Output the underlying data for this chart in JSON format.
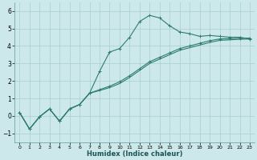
{
  "xlabel": "Humidex (Indice chaleur)",
  "x_ticks": [
    0,
    1,
    2,
    3,
    4,
    5,
    6,
    7,
    8,
    9,
    10,
    11,
    12,
    13,
    14,
    15,
    16,
    17,
    18,
    19,
    20,
    21,
    22,
    23
  ],
  "ylim": [
    -1.5,
    6.5
  ],
  "xlim": [
    -0.5,
    23.5
  ],
  "yticks": [
    -1,
    0,
    1,
    2,
    3,
    4,
    5,
    6
  ],
  "bg_color": "#cce8eb",
  "grid_color": "#a8cdd1",
  "line_color": "#2e7d6e",
  "line1_x": [
    0,
    1,
    2,
    3,
    4,
    5,
    6,
    7,
    8,
    9,
    10,
    11,
    12,
    13,
    14,
    15,
    16,
    17,
    18,
    19,
    20,
    21,
    22,
    23
  ],
  "line1_y": [
    0.2,
    -0.75,
    -0.05,
    0.4,
    -0.3,
    0.4,
    0.65,
    1.3,
    2.55,
    3.65,
    3.85,
    4.5,
    5.4,
    5.75,
    5.6,
    5.15,
    4.8,
    4.7,
    4.55,
    4.6,
    4.55,
    4.5,
    4.5,
    4.4
  ],
  "line2_x": [
    0,
    1,
    2,
    3,
    4,
    5,
    6,
    7,
    8,
    9,
    10,
    11,
    12,
    13,
    14,
    15,
    16,
    17,
    18,
    19,
    20,
    21,
    22,
    23
  ],
  "line2_y": [
    0.2,
    -0.75,
    -0.05,
    0.4,
    -0.3,
    0.4,
    0.65,
    1.3,
    1.5,
    1.7,
    1.95,
    2.3,
    2.7,
    3.1,
    3.35,
    3.6,
    3.85,
    4.0,
    4.15,
    4.3,
    4.4,
    4.42,
    4.44,
    4.45
  ],
  "line3_x": [
    0,
    1,
    2,
    3,
    4,
    5,
    6,
    7,
    8,
    9,
    10,
    11,
    12,
    13,
    14,
    15,
    16,
    17,
    18,
    19,
    20,
    21,
    22,
    23
  ],
  "line3_y": [
    0.2,
    -0.75,
    -0.05,
    0.4,
    -0.3,
    0.4,
    0.65,
    1.3,
    1.45,
    1.62,
    1.85,
    2.2,
    2.6,
    3.0,
    3.25,
    3.5,
    3.75,
    3.9,
    4.05,
    4.2,
    4.32,
    4.35,
    4.38,
    4.4
  ]
}
